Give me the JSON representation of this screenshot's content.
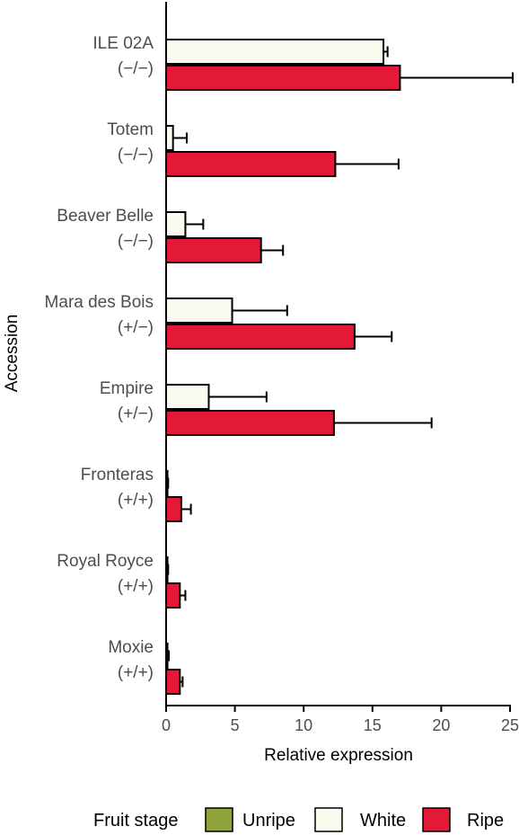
{
  "chart_data": {
    "type": "bar",
    "orientation": "horizontal",
    "xlabel": "Relative expression",
    "ylabel": "Accession",
    "xlim": [
      0,
      25
    ],
    "xticks": [
      0,
      5,
      10,
      15,
      20,
      25
    ],
    "categories": [
      {
        "name": "ILE 02A",
        "genotype": "(−/−)"
      },
      {
        "name": "Totem",
        "genotype": "(−/−)"
      },
      {
        "name": "Beaver Belle",
        "genotype": "(−/−)"
      },
      {
        "name": "Mara des Bois",
        "genotype": "(+/−)"
      },
      {
        "name": "Empire",
        "genotype": "(+/−)"
      },
      {
        "name": "Fronteras",
        "genotype": "(+/+)"
      },
      {
        "name": "Royal Royce",
        "genotype": "(+/+)"
      },
      {
        "name": "Moxie",
        "genotype": "(+/+)"
      }
    ],
    "series": [
      {
        "name": "Unripe",
        "color": "#8fa33b",
        "values": [
          0,
          0,
          0,
          0,
          0.1,
          0.05,
          0.05,
          0.1
        ],
        "errors": [
          0,
          0,
          0,
          0,
          0.05,
          0.05,
          0.05,
          0.1
        ]
      },
      {
        "name": "White",
        "color": "#fbfbef",
        "values": [
          15.8,
          0.5,
          1.4,
          4.8,
          3.1,
          0.1,
          0.1,
          0.1
        ],
        "errors": [
          0.3,
          1.0,
          1.3,
          4.0,
          4.2,
          0.05,
          0.05,
          0.1
        ]
      },
      {
        "name": "Ripe",
        "color": "#e21a38",
        "values": [
          17.0,
          12.3,
          6.9,
          13.7,
          12.2,
          1.1,
          1.0,
          1.0
        ],
        "errors": [
          8.2,
          4.6,
          1.6,
          2.7,
          7.1,
          0.7,
          0.4,
          0.2
        ]
      }
    ],
    "legend": {
      "title": "Fruit stage",
      "placement": "bottom"
    },
    "grid": false
  }
}
